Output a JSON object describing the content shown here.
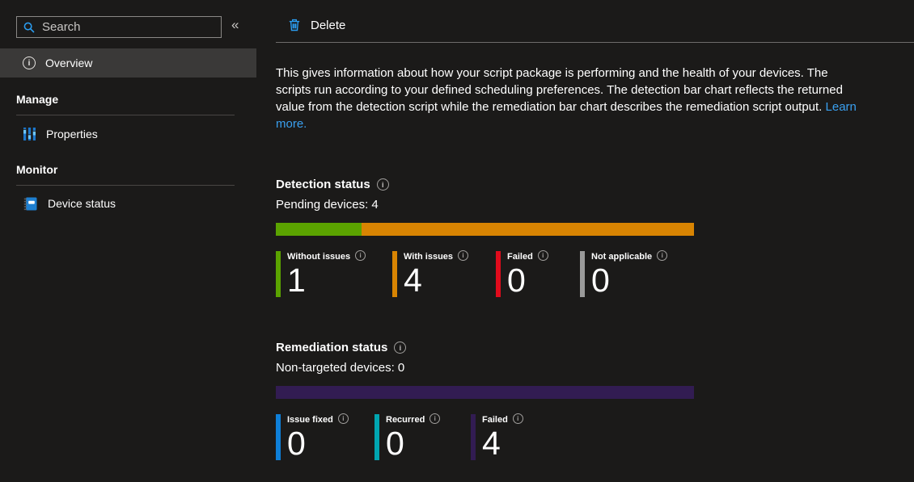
{
  "sidebar": {
    "search_placeholder": "Search",
    "collapse_glyph": "«",
    "items": {
      "overview": "Overview",
      "properties": "Properties",
      "device_status": "Device status"
    },
    "section_headers": {
      "manage": "Manage",
      "monitor": "Monitor"
    }
  },
  "toolbar": {
    "delete_label": "Delete"
  },
  "glyphs": {
    "info": "i"
  },
  "overview_blurb": {
    "text": "This gives information about how your script package is performing and the health of your devices. The scripts run according to your defined scheduling preferences. The detection bar chart reflects the returned value from the detection script while the remediation bar chart describes the remediation script output. ",
    "link": "Learn more."
  },
  "detection": {
    "title": "Detection status",
    "subtitle": "Pending devices: 4",
    "bar": {
      "segments": [
        {
          "color": "#5ba300",
          "fraction": 0.205
        },
        {
          "color": "#d88402",
          "fraction": 0.795
        }
      ]
    },
    "legend": [
      {
        "label": "Without issues",
        "value": 1,
        "color": "#5ba300"
      },
      {
        "label": "With issues",
        "value": 4,
        "color": "#d88402"
      },
      {
        "label": "Failed",
        "value": 0,
        "color": "#e00b1c"
      },
      {
        "label": "Not applicable",
        "value": 0,
        "color": "#9a9a9a"
      }
    ]
  },
  "remediation": {
    "title": "Remediation status",
    "subtitle": "Non-targeted devices: 0",
    "bar": {
      "segments": [
        {
          "color": "#321c52",
          "fraction": 1.0
        }
      ]
    },
    "legend": [
      {
        "label": "Issue fixed",
        "value": 0,
        "color": "#0e7fd8"
      },
      {
        "label": "Recurred",
        "value": 0,
        "color": "#00a5b0"
      },
      {
        "label": "Failed",
        "value": 4,
        "color": "#321c52"
      }
    ]
  },
  "chart_data": [
    {
      "type": "bar",
      "title": "Detection status",
      "subtitle": "Pending devices: 4",
      "categories": [
        "Without issues",
        "With issues",
        "Failed",
        "Not applicable"
      ],
      "values": [
        1,
        4,
        0,
        0
      ],
      "colors": [
        "#5ba300",
        "#d88402",
        "#e00b1c",
        "#9a9a9a"
      ],
      "layout": "horizontal stacked bar of non-zero values with big-number legend below"
    },
    {
      "type": "bar",
      "title": "Remediation status",
      "subtitle": "Non-targeted devices: 0",
      "categories": [
        "Issue fixed",
        "Recurred",
        "Failed"
      ],
      "values": [
        0,
        0,
        4
      ],
      "colors": [
        "#0e7fd8",
        "#00a5b0",
        "#321c52"
      ],
      "layout": "horizontal stacked bar of non-zero values with big-number legend below"
    }
  ]
}
